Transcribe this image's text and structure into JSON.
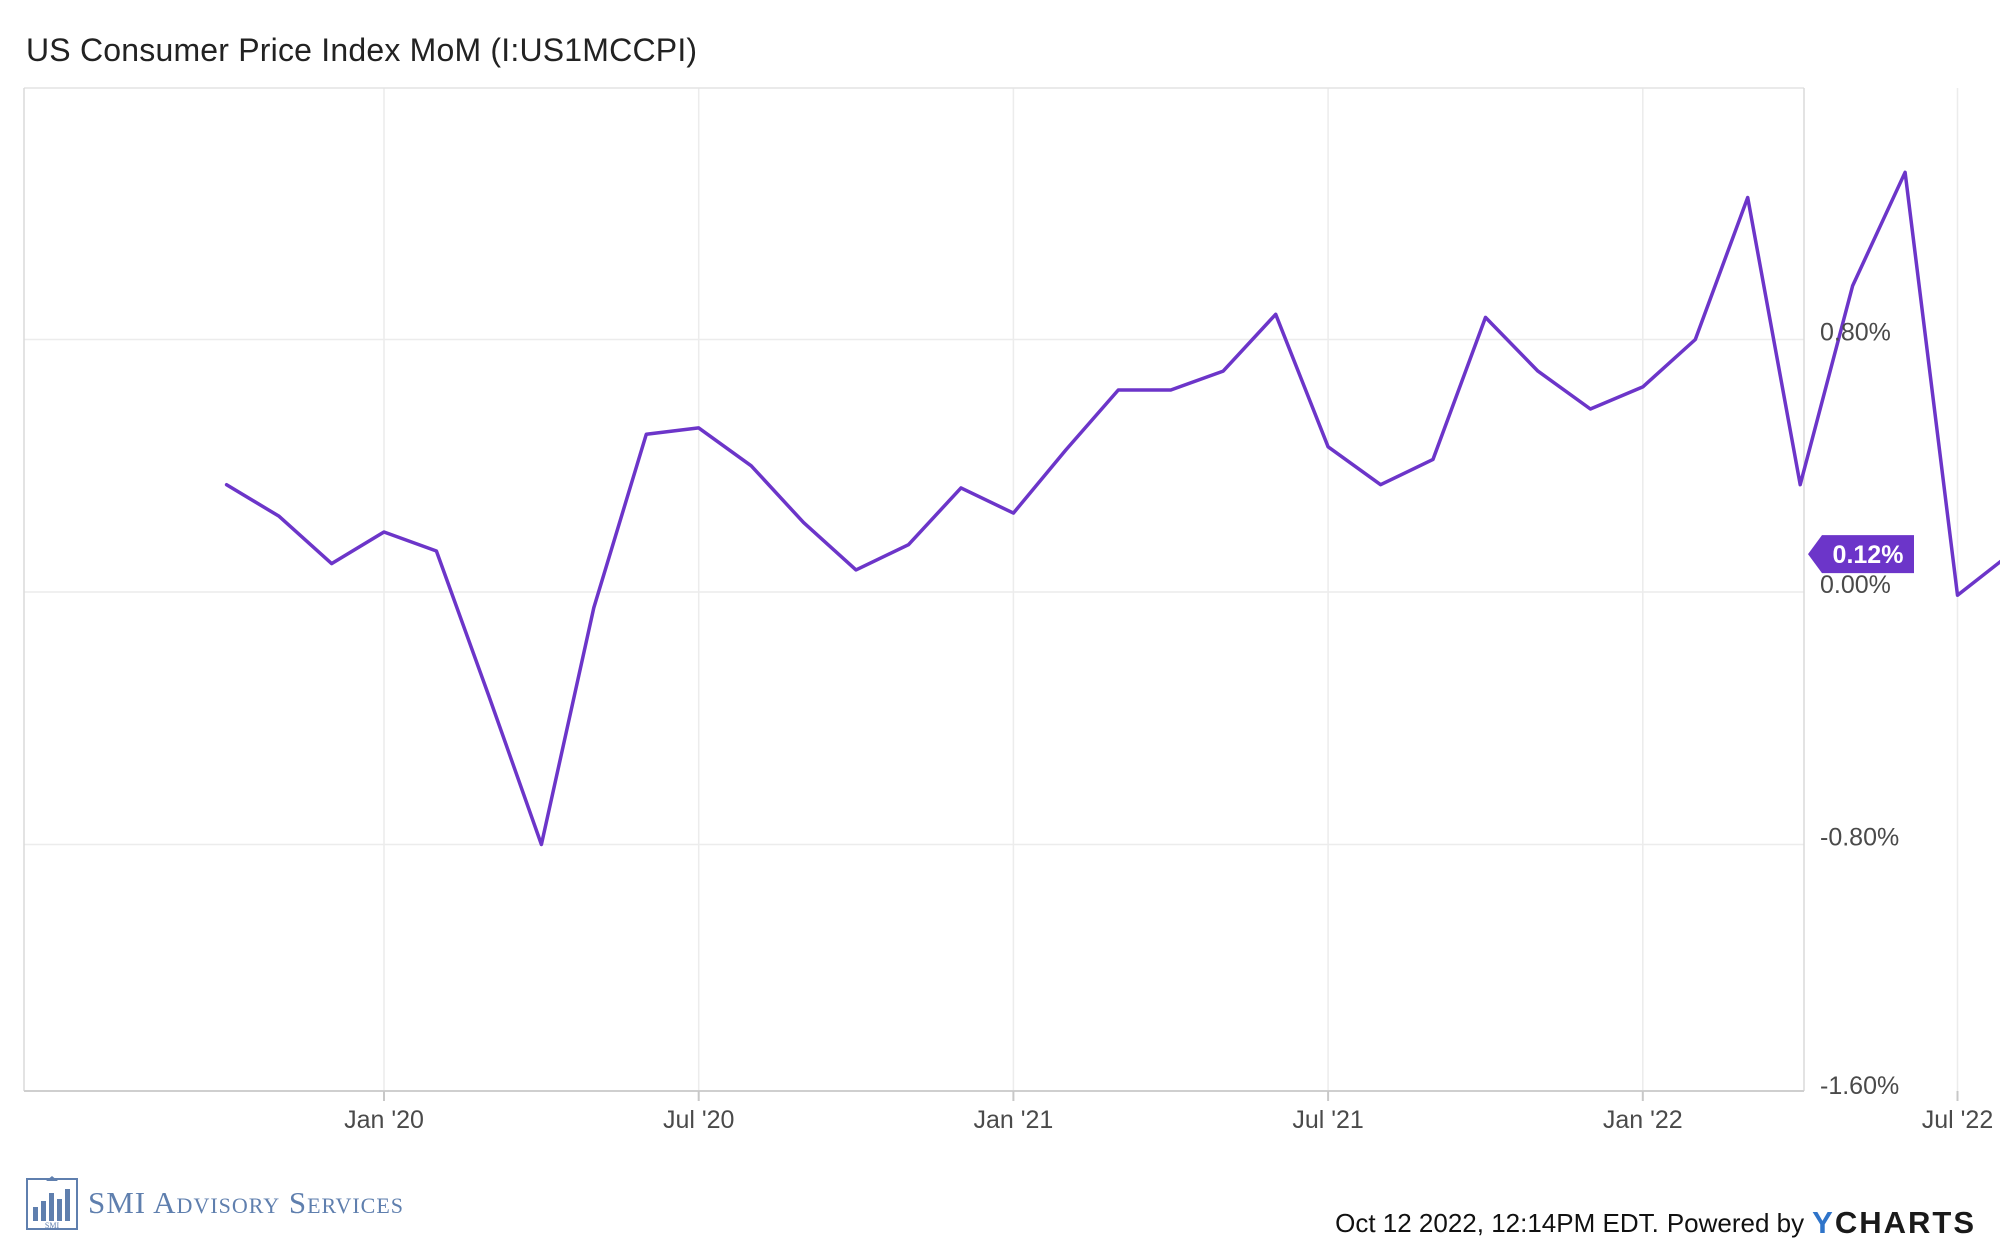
{
  "header": {
    "title": "US Consumer Price Index MoM (I:US1MCCPI)"
  },
  "chart_data": {
    "type": "line",
    "title": "US Consumer Price Index MoM (I:US1MCCPI)",
    "xlabel": "",
    "ylabel": "",
    "x_tick_labels": [
      "Jan '20",
      "Jul '20",
      "Jan '21",
      "Jul '21",
      "Jan '22",
      "Jul '22"
    ],
    "y_tick_labels": [
      "0.80%",
      "0.00%",
      "-0.80%",
      "-1.60%"
    ],
    "y_tick_values": [
      0.8,
      0.0,
      -0.8,
      -1.6
    ],
    "ylim": [
      -1.6,
      1.6
    ],
    "x_range": [
      "2019-11",
      "2022-09"
    ],
    "grid": true,
    "series": [
      {
        "color": "#6c35c9",
        "points": [
          {
            "x": "2019-10",
            "y": 0.34
          },
          {
            "x": "2019-11",
            "y": 0.24
          },
          {
            "x": "2019-12",
            "y": 0.09
          },
          {
            "x": "2020-01",
            "y": 0.19
          },
          {
            "x": "2020-02",
            "y": 0.13
          },
          {
            "x": "2020-03",
            "y": -0.33
          },
          {
            "x": "2020-04",
            "y": -0.8
          },
          {
            "x": "2020-05",
            "y": -0.05
          },
          {
            "x": "2020-06",
            "y": 0.5
          },
          {
            "x": "2020-07",
            "y": 0.52
          },
          {
            "x": "2020-08",
            "y": 0.4
          },
          {
            "x": "2020-09",
            "y": 0.22
          },
          {
            "x": "2020-10",
            "y": 0.07
          },
          {
            "x": "2020-11",
            "y": 0.15
          },
          {
            "x": "2020-12",
            "y": 0.33
          },
          {
            "x": "2021-01",
            "y": 0.25
          },
          {
            "x": "2021-02",
            "y": 0.45
          },
          {
            "x": "2021-03",
            "y": 0.64
          },
          {
            "x": "2021-04",
            "y": 0.64
          },
          {
            "x": "2021-05",
            "y": 0.7
          },
          {
            "x": "2021-06",
            "y": 0.88
          },
          {
            "x": "2021-07",
            "y": 0.46
          },
          {
            "x": "2021-08",
            "y": 0.34
          },
          {
            "x": "2021-09",
            "y": 0.42
          },
          {
            "x": "2021-10",
            "y": 0.87
          },
          {
            "x": "2021-11",
            "y": 0.7
          },
          {
            "x": "2021-12",
            "y": 0.58
          },
          {
            "x": "2022-01",
            "y": 0.65
          },
          {
            "x": "2022-02",
            "y": 0.8
          },
          {
            "x": "2022-03",
            "y": 1.25
          },
          {
            "x": "2022-04",
            "y": 0.34
          },
          {
            "x": "2022-05",
            "y": 0.97
          },
          {
            "x": "2022-06",
            "y": 1.33
          },
          {
            "x": "2022-07",
            "y": -0.01
          },
          {
            "x": "2022-08",
            "y": 0.12
          }
        ]
      }
    ],
    "last_value_label": "0.12%",
    "accent_color": "#6c35c9"
  },
  "footer": {
    "brand_name": "SMI Advisory Services",
    "brand_monogram": "SMI",
    "brand_color": "#5f7fae",
    "timestamp": "Oct 12 2022, 12:14PM EDT.",
    "powered_by": "Powered by",
    "ycharts_y": "Y",
    "ycharts_rest": "CHARTS",
    "ycharts_accent": "#2f74c9"
  }
}
